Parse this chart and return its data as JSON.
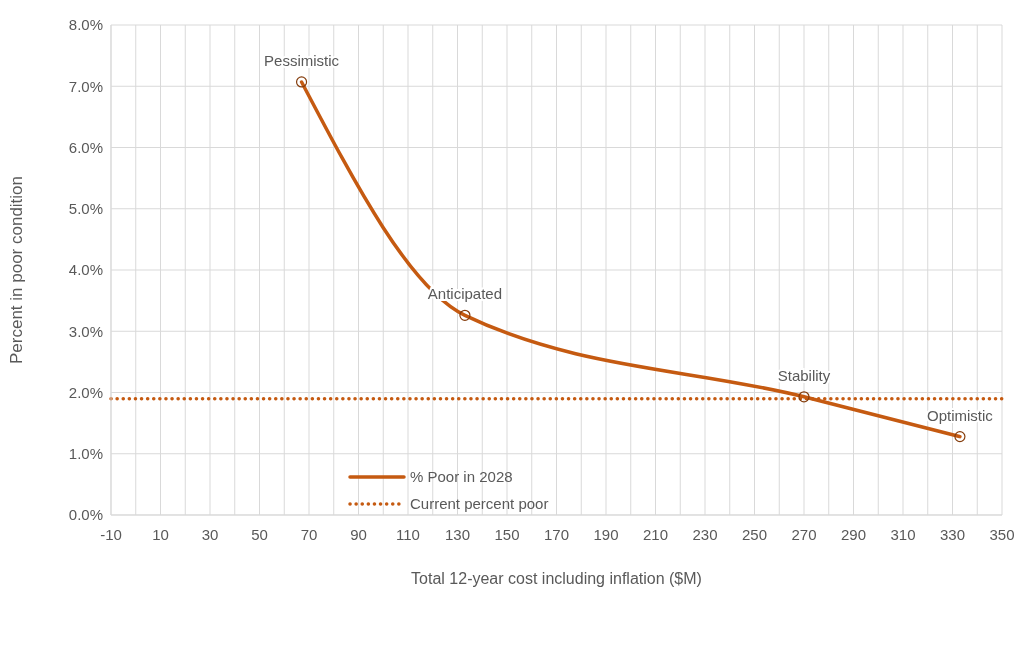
{
  "chart_data": {
    "type": "line",
    "xlabel": "Total 12-year cost including inflation ($M)",
    "ylabel": "Percent in poor condition",
    "series": [
      {
        "name": "% Poor in 2028",
        "color": "#c55a11",
        "x": [
          67,
          133,
          270,
          333
        ],
        "values": [
          7.07,
          3.26,
          1.93,
          1.28
        ]
      }
    ],
    "annotations": [
      {
        "text": "Pessimistic",
        "x": 67,
        "y": 7.07
      },
      {
        "text": "Anticipated",
        "x": 133,
        "y": 3.26
      },
      {
        "text": "Stability",
        "x": 270,
        "y": 1.93
      },
      {
        "text": "Optimistic",
        "x": 333,
        "y": 1.28
      }
    ],
    "ref_lines": [
      {
        "axis": "y",
        "value": 1.9,
        "label": "Current percent poor",
        "color": "#c55a11",
        "line_style": "dotted"
      }
    ],
    "xlim": [
      -10,
      350
    ],
    "xticks": [
      -10,
      {
        "value": 0,
        "label": null
      },
      10,
      {
        "value": 20,
        "label": null
      },
      30,
      {
        "value": 40,
        "label": null
      },
      50,
      {
        "value": 60,
        "label": null
      },
      70,
      {
        "value": 80,
        "label": null
      },
      90,
      {
        "value": 100,
        "label": null
      },
      110,
      {
        "value": 120,
        "label": null
      },
      130,
      {
        "value": 140,
        "label": null
      },
      150,
      {
        "value": 160,
        "label": null
      },
      170,
      {
        "value": 180,
        "label": null
      },
      190,
      {
        "value": 200,
        "label": null
      },
      210,
      {
        "value": 220,
        "label": null
      },
      230,
      {
        "value": 240,
        "label": null
      },
      250,
      {
        "value": 260,
        "label": null
      },
      270,
      {
        "value": 280,
        "label": null
      },
      290,
      {
        "value": 300,
        "label": null
      },
      310,
      {
        "value": 320,
        "label": null
      },
      330,
      {
        "value": 340,
        "label": null
      },
      350
    ],
    "ylim": [
      0,
      8
    ],
    "yticks": [
      {
        "value": 0,
        "label": "0.0%"
      },
      {
        "value": 1,
        "label": "1.0%"
      },
      {
        "value": 2,
        "label": "2.0%"
      },
      {
        "value": 3,
        "label": "3.0%"
      },
      {
        "value": 4,
        "label": "4.0%"
      },
      {
        "value": 5,
        "label": "5.0%"
      },
      {
        "value": 6,
        "label": "6.0%"
      },
      {
        "value": 7,
        "label": "7.0%"
      },
      {
        "value": 8,
        "label": "8.0%"
      }
    ],
    "grid": true,
    "legend": "left",
    "marker": "circle",
    "line_style": "solid"
  }
}
